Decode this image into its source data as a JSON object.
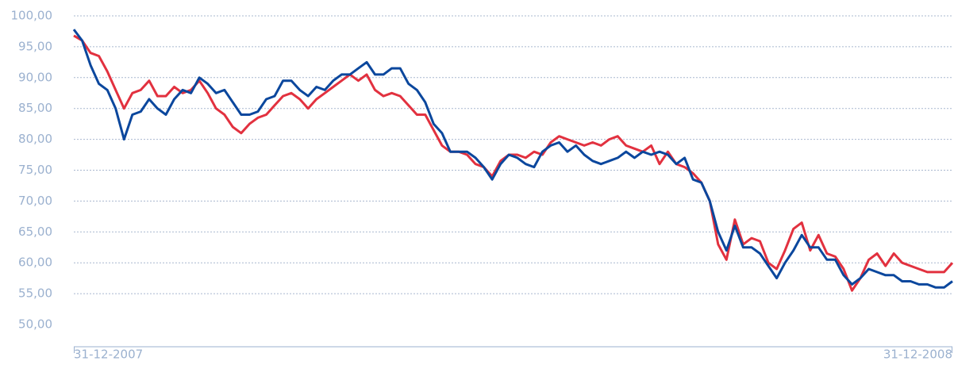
{
  "chart_data": {
    "type": "line",
    "categories": [
      "31-12-2007",
      null,
      null,
      null,
      null,
      null,
      null,
      null,
      null,
      null,
      null,
      null,
      null,
      null,
      null,
      null,
      null,
      null,
      null,
      null,
      null,
      null,
      null,
      null,
      null,
      null,
      null,
      null,
      null,
      null,
      null,
      null,
      null,
      null,
      null,
      null,
      null,
      null,
      null,
      null,
      null,
      null,
      null,
      null,
      null,
      null,
      null,
      null,
      null,
      null,
      null,
      null,
      null,
      null,
      null,
      null,
      null,
      null,
      null,
      null,
      null,
      null,
      null,
      null,
      null,
      null,
      null,
      null,
      null,
      null,
      null,
      null,
      null,
      null,
      null,
      null,
      null,
      null,
      null,
      null,
      null,
      null,
      null,
      null,
      null,
      null,
      null,
      null,
      null,
      null,
      null,
      null,
      null,
      null,
      null,
      null,
      null,
      null,
      null,
      null,
      null,
      null,
      null,
      null,
      null,
      "31-12-2008"
    ],
    "series": [
      {
        "color": "#e2313f",
        "values": [
          96.8,
          96,
          94,
          93.5,
          91,
          88,
          85,
          87.5,
          88,
          89.5,
          87,
          87,
          88.5,
          87.5,
          88,
          89.5,
          87.5,
          85,
          84,
          82,
          81,
          82.5,
          83.5,
          84,
          85.5,
          87,
          87.5,
          86.5,
          85,
          86.5,
          87.5,
          88.5,
          89.5,
          90.5,
          89.5,
          90.5,
          88,
          87,
          87.5,
          87,
          85.5,
          84,
          84,
          81.5,
          79,
          78,
          78,
          77.5,
          76,
          75.5,
          74,
          76.5,
          77.5,
          77.5,
          77,
          78,
          77.5,
          79.5,
          80.5,
          80,
          79.5,
          79,
          79.5,
          79,
          80,
          80.5,
          79,
          78.5,
          78,
          79,
          76,
          78,
          76,
          75.5,
          74.5,
          73,
          70,
          63,
          60.5,
          67,
          63,
          64,
          63.5,
          60,
          59,
          62,
          65.5,
          66.5,
          62,
          64.5,
          61.5,
          61,
          59,
          55.5,
          57.5,
          60.5,
          61.5,
          59.5,
          61.5,
          60,
          59.5,
          59,
          58.5,
          58.5,
          58.5,
          60
        ]
      },
      {
        "color": "#0b479d",
        "values": [
          97.8,
          96,
          92,
          89,
          88,
          85,
          80,
          84,
          84.5,
          86.5,
          85,
          84,
          86.5,
          88,
          87.5,
          90,
          89,
          87.5,
          88,
          86,
          84,
          84,
          84.5,
          86.5,
          87,
          89.5,
          89.5,
          88,
          87,
          88.5,
          88,
          89.5,
          90.5,
          90.5,
          91.5,
          92.5,
          90.5,
          90.5,
          91.5,
          91.5,
          89,
          88,
          86,
          82.5,
          81,
          78,
          78,
          78,
          77,
          75.5,
          73.5,
          76,
          77.5,
          77,
          76,
          75.5,
          78,
          79,
          79.5,
          78,
          79,
          77.5,
          76.5,
          76,
          76.5,
          77,
          78,
          77,
          78,
          77.5,
          78,
          77.5,
          76,
          77,
          73.5,
          73,
          70,
          65,
          62,
          66,
          62.5,
          62.5,
          61.5,
          59.5,
          57.5,
          60,
          62,
          64.5,
          62.5,
          62.5,
          60.5,
          60.5,
          58,
          56.5,
          57.5,
          59,
          58.5,
          58,
          58,
          57,
          57,
          56.5,
          56.5,
          56,
          56,
          57
        ]
      }
    ],
    "ylim": [
      50,
      100
    ],
    "yticks": [
      {
        "value": 50,
        "label": "50,00"
      },
      {
        "value": 55,
        "label": "55,00"
      },
      {
        "value": 60,
        "label": "60,00"
      },
      {
        "value": 65,
        "label": "65,00"
      },
      {
        "value": 70,
        "label": "70,00"
      },
      {
        "value": 75,
        "label": "75,00"
      },
      {
        "value": 80,
        "label": "80,00"
      },
      {
        "value": 85,
        "label": "85,00"
      },
      {
        "value": 90,
        "label": "90,00"
      },
      {
        "value": 95,
        "label": "95,00"
      },
      {
        "value": 100,
        "label": "100,00"
      }
    ],
    "grid": true
  }
}
